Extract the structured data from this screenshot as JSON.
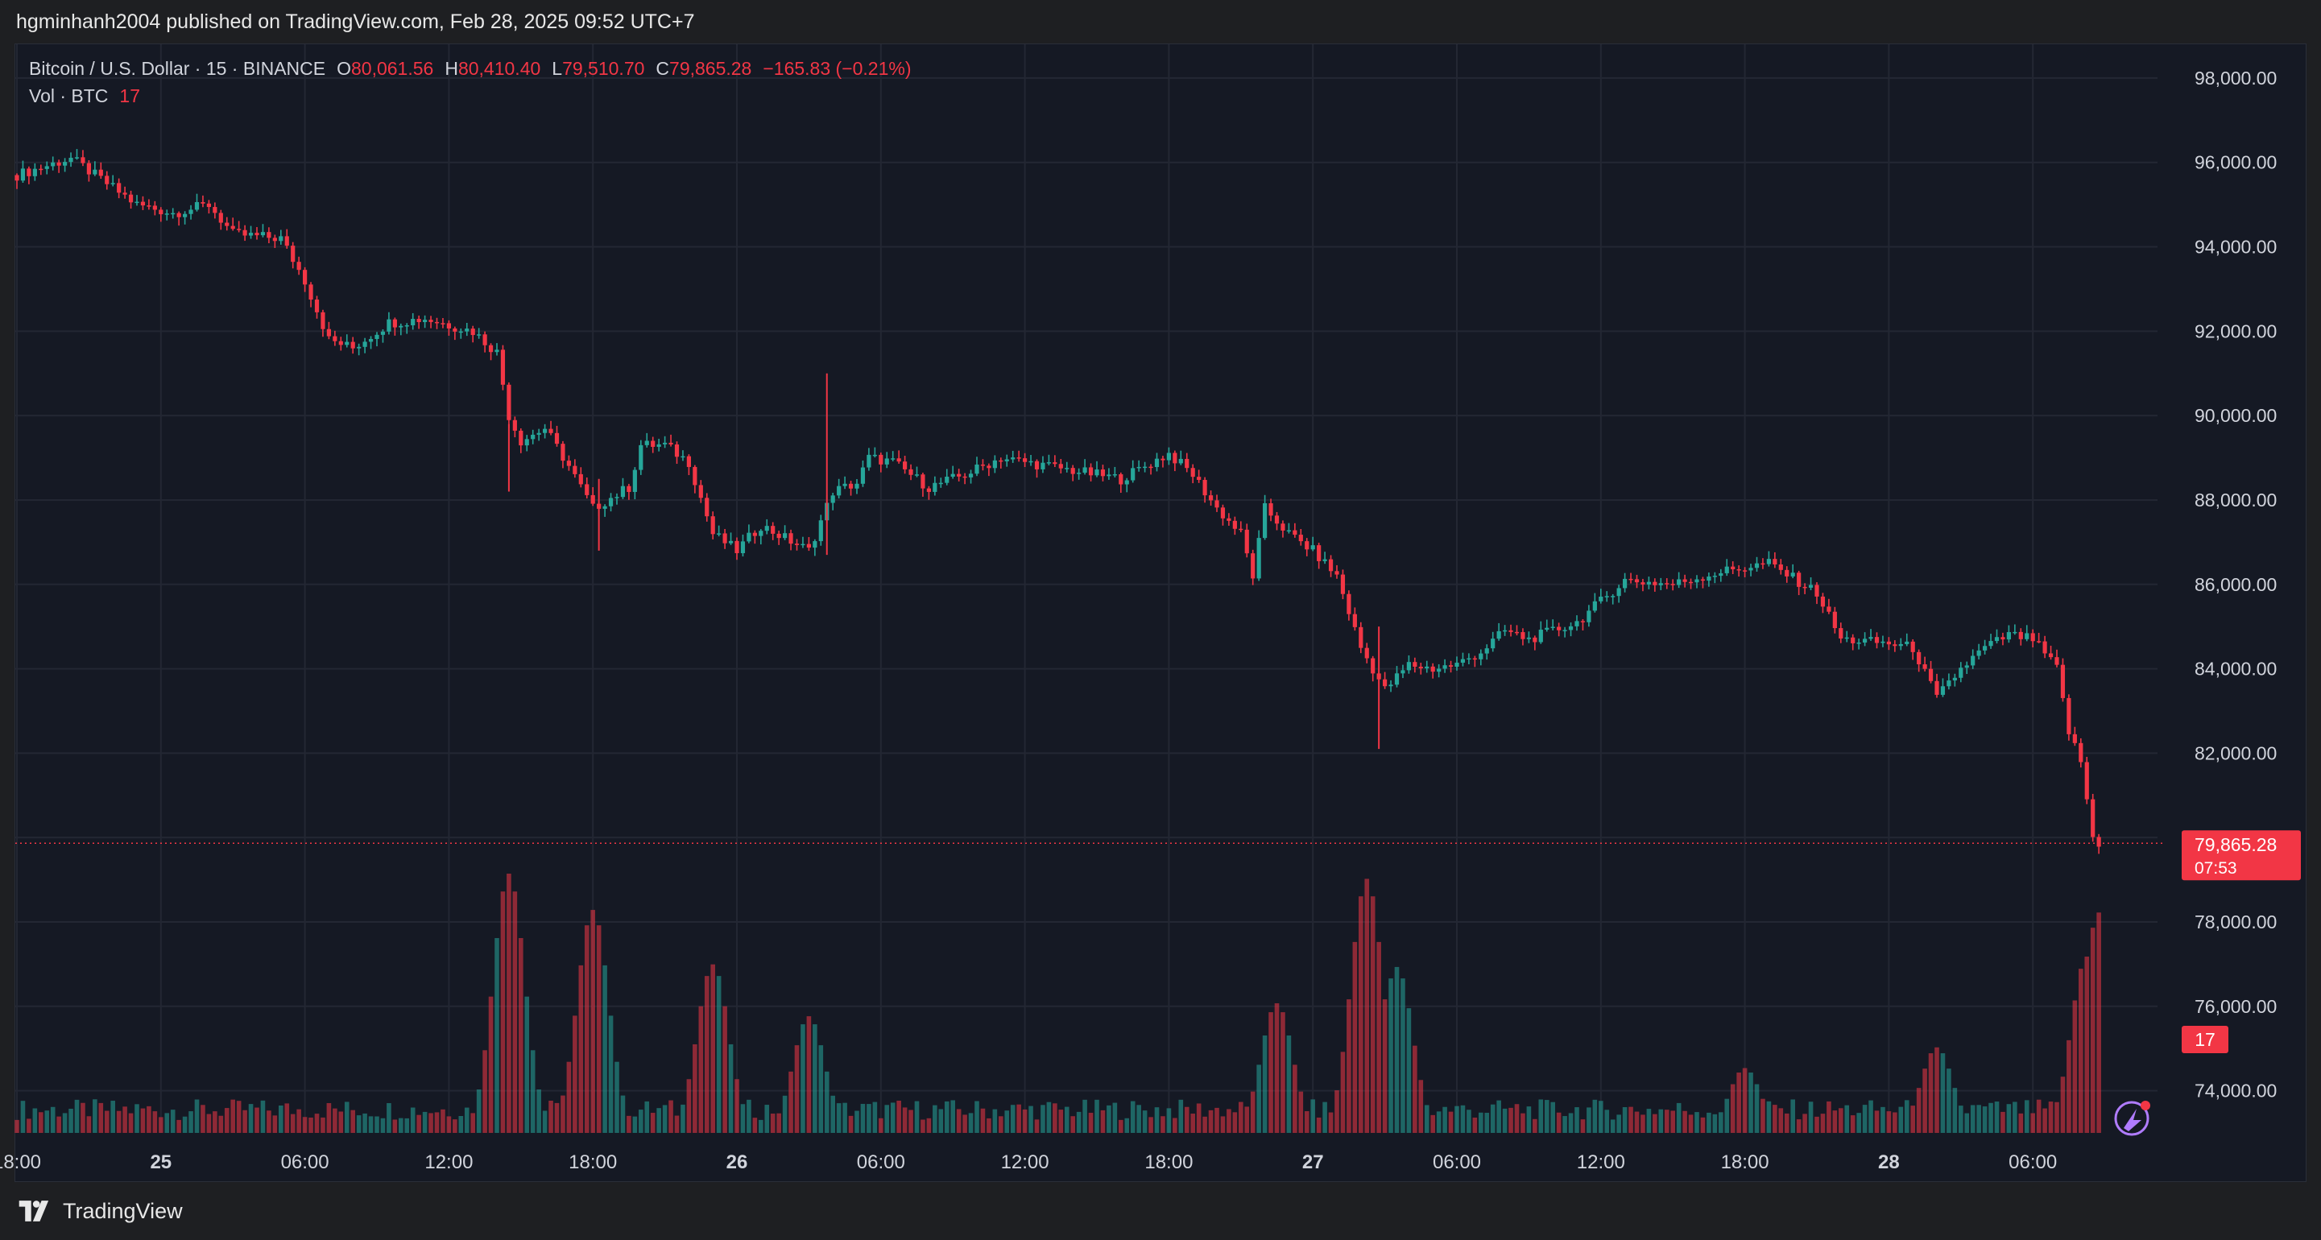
{
  "header": {
    "publisher_line": "hgminhanh2004 published on TradingView.com, Feb 28, 2025 09:52 UTC+7"
  },
  "legend": {
    "symbol": "Bitcoin / U.S. Dollar · 15 · BINANCE",
    "open_label": "O",
    "open": "80,061.56",
    "high_label": "H",
    "high": "80,410.40",
    "low_label": "L",
    "low": "79,510.70",
    "close_label": "C",
    "close": "79,865.28",
    "change": "−165.83 (−0.21%)",
    "volume_label": "Vol · BTC",
    "volume": "17"
  },
  "price_badge": {
    "price": "79,865.28",
    "countdown": "07:53"
  },
  "volume_badge": {
    "value": "17"
  },
  "footer": {
    "brand": "TradingView"
  },
  "colors": {
    "up": "#26a69a",
    "down": "#f23645",
    "background": "#151924",
    "grid": "#232733",
    "text": "#d1d4dc"
  },
  "chart_data": {
    "type": "candlestick",
    "series": [
      {
        "name": "Bitcoin / U.S. Dollar · 15 · BINANCE"
      }
    ],
    "interval_minutes": 15,
    "x_start": "2025-02-24 18:00",
    "x_tick_labels": [
      "18:00",
      "25",
      "06:00",
      "12:00",
      "18:00",
      "26",
      "06:00",
      "12:00",
      "18:00",
      "27",
      "06:00",
      "12:00",
      "18:00",
      "28",
      "06:00"
    ],
    "x_tick_times": [
      "2025-02-24 18:00",
      "2025-02-25 00:00",
      "2025-02-25 06:00",
      "2025-02-25 12:00",
      "2025-02-25 18:00",
      "2025-02-26 00:00",
      "2025-02-26 06:00",
      "2025-02-26 12:00",
      "2025-02-26 18:00",
      "2025-02-27 00:00",
      "2025-02-27 06:00",
      "2025-02-27 12:00",
      "2025-02-27 18:00",
      "2025-02-28 00:00",
      "2025-02-28 06:00"
    ],
    "y_tick_labels": [
      "98,000.00",
      "96,000.00",
      "94,000.00",
      "92,000.00",
      "90,000.00",
      "88,000.00",
      "86,000.00",
      "84,000.00",
      "82,000.00",
      "78,000.00",
      "76,000.00",
      "74,000.00"
    ],
    "y_ticks": [
      98000,
      96000,
      94000,
      92000,
      90000,
      88000,
      86000,
      84000,
      82000,
      80000,
      78000,
      76000,
      74000
    ],
    "ylim": [
      73000,
      98800
    ],
    "last_close": 79865.28,
    "grid": true,
    "path_keypoints": [
      [
        "2025-02-24 18:00",
        95700
      ],
      [
        "2025-02-24 20:15",
        96100
      ],
      [
        "2025-02-24 23:00",
        95000
      ],
      [
        "2025-02-25 00:30",
        94800
      ],
      [
        "2025-02-25 02:00",
        95000
      ],
      [
        "2025-02-25 03:00",
        94300
      ],
      [
        "2025-02-25 05:00",
        94200
      ],
      [
        "2025-02-25 06:00",
        93200
      ],
      [
        "2025-02-25 07:00",
        91800
      ],
      [
        "2025-02-25 08:00",
        91600
      ],
      [
        "2025-02-25 09:30",
        92200
      ],
      [
        "2025-02-25 11:00",
        92300
      ],
      [
        "2025-02-25 13:00",
        92000
      ],
      [
        "2025-02-25 14:00",
        91500
      ],
      [
        "2025-02-25 14:30",
        90000
      ],
      [
        "2025-02-25 15:00",
        89400
      ],
      [
        "2025-02-25 16:00",
        89700
      ],
      [
        "2025-02-25 17:00",
        88800
      ],
      [
        "2025-02-25 18:00",
        87800
      ],
      [
        "2025-02-25 19:30",
        88300
      ],
      [
        "2025-02-25 20:00",
        89300
      ],
      [
        "2025-02-25 21:00",
        89300
      ],
      [
        "2025-02-25 22:00",
        88900
      ],
      [
        "2025-02-25 23:00",
        87200
      ],
      [
        "2025-02-26 00:00",
        86800
      ],
      [
        "2025-02-26 01:00",
        87400
      ],
      [
        "2025-02-26 02:00",
        87100
      ],
      [
        "2025-02-26 03:00",
        86800
      ],
      [
        "2025-02-26 04:00",
        88200
      ],
      [
        "2025-02-26 05:00",
        88400
      ],
      [
        "2025-02-26 05:30",
        89000
      ],
      [
        "2025-02-26 06:30",
        88900
      ],
      [
        "2025-02-26 08:00",
        88300
      ],
      [
        "2025-02-26 09:30",
        88600
      ],
      [
        "2025-02-26 11:00",
        89000
      ],
      [
        "2025-02-26 12:00",
        88900
      ],
      [
        "2025-02-26 14:00",
        88700
      ],
      [
        "2025-02-26 16:00",
        88500
      ],
      [
        "2025-02-26 18:00",
        89100
      ],
      [
        "2025-02-26 19:00",
        88600
      ],
      [
        "2025-02-26 20:00",
        87800
      ],
      [
        "2025-02-26 21:00",
        87200
      ],
      [
        "2025-02-26 21:30",
        86200
      ],
      [
        "2025-02-26 22:00",
        87800
      ],
      [
        "2025-02-26 23:00",
        87200
      ],
      [
        "2025-02-27 00:00",
        86800
      ],
      [
        "2025-02-27 01:00",
        86200
      ],
      [
        "2025-02-27 02:00",
        84500
      ],
      [
        "2025-02-27 03:00",
        83500
      ],
      [
        "2025-02-27 04:00",
        84100
      ],
      [
        "2025-02-27 05:00",
        84000
      ],
      [
        "2025-02-27 06:00",
        84100
      ],
      [
        "2025-02-27 07:00",
        84400
      ],
      [
        "2025-02-27 08:00",
        84900
      ],
      [
        "2025-02-27 09:00",
        84700
      ],
      [
        "2025-02-27 11:00",
        85100
      ],
      [
        "2025-02-27 13:00",
        86100
      ],
      [
        "2025-02-27 15:00",
        86000
      ],
      [
        "2025-02-27 17:00",
        86300
      ],
      [
        "2025-02-27 19:00",
        86500
      ],
      [
        "2025-02-27 21:00",
        85800
      ],
      [
        "2025-02-27 22:00",
        84700
      ],
      [
        "2025-02-28 00:00",
        84600
      ],
      [
        "2025-02-28 01:00",
        84500
      ],
      [
        "2025-02-28 02:00",
        83300
      ],
      [
        "2025-02-28 03:00",
        84000
      ],
      [
        "2025-02-28 04:00",
        84500
      ],
      [
        "2025-02-28 05:00",
        84800
      ],
      [
        "2025-02-28 06:00",
        84700
      ],
      [
        "2025-02-28 07:00",
        84000
      ],
      [
        "2025-02-28 07:30",
        82500
      ],
      [
        "2025-02-28 08:00",
        81800
      ],
      [
        "2025-02-28 08:30",
        80000
      ],
      [
        "2025-02-28 08:45",
        79865
      ]
    ],
    "spikes": [
      {
        "time": "2025-02-26 03:45",
        "high": 91000,
        "low": 86700
      },
      {
        "time": "2025-02-27 02:45",
        "high": 85000,
        "low": 82100
      },
      {
        "time": "2025-02-25 18:15",
        "high": 88500,
        "low": 86800
      },
      {
        "time": "2025-02-25 14:30",
        "high": 89800,
        "low": 88200
      }
    ],
    "volume_peaks": [
      {
        "time": "2025-02-25 14:30",
        "volume": 1.0
      },
      {
        "time": "2025-02-25 18:00",
        "volume": 0.86
      },
      {
        "time": "2025-02-25 23:00",
        "volume": 0.65
      },
      {
        "time": "2025-02-26 03:00",
        "volume": 0.45
      },
      {
        "time": "2025-02-26 22:30",
        "volume": 0.5
      },
      {
        "time": "2025-02-27 02:15",
        "volume": 0.98
      },
      {
        "time": "2025-02-27 03:30",
        "volume": 0.64
      },
      {
        "time": "2025-02-27 18:00",
        "volume": 0.25
      },
      {
        "time": "2025-02-28 02:00",
        "volume": 0.33
      },
      {
        "time": "2025-02-28 08:15",
        "volume": 0.68
      },
      {
        "time": "2025-02-28 08:45",
        "volume": 0.85
      }
    ]
  }
}
